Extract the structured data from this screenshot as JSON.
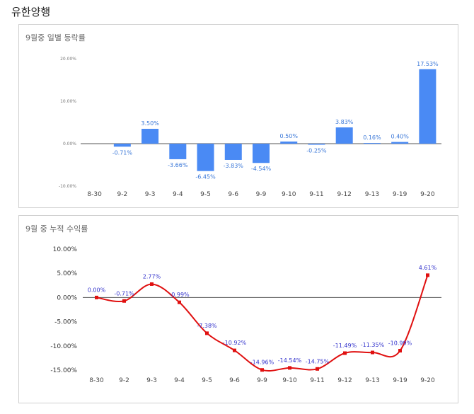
{
  "page": {
    "title": "유한양행"
  },
  "chart_data": [
    {
      "type": "bar",
      "title": "9월중 일별 등락률",
      "categories": [
        "8-30",
        "9-2",
        "9-3",
        "9-4",
        "9-5",
        "9-6",
        "9-9",
        "9-10",
        "9-11",
        "9-12",
        "9-13",
        "9-19",
        "9-20"
      ],
      "values": [
        null,
        -0.71,
        3.5,
        -3.66,
        -6.45,
        -3.83,
        -4.54,
        0.5,
        -0.25,
        3.83,
        0.16,
        0.4,
        17.53
      ],
      "data_labels": [
        "",
        "-0.71%",
        "3.50%",
        "-3.66%",
        "-6.45%",
        "-3.83%",
        "-4.54%",
        "0.50%",
        "-0.25%",
        "3.83%",
        "0.16%",
        "0.40%",
        "17.53%"
      ],
      "yticks": [
        20,
        10,
        0,
        -10
      ],
      "ytick_labels": [
        "20.00%",
        "10.00%",
        "0.00%",
        "-10.00%"
      ],
      "ylim": [
        -10,
        20
      ],
      "color": "#4a8af4",
      "grid": false
    },
    {
      "type": "line",
      "title": "9월 중 누적 수익률",
      "categories": [
        "8-30",
        "9-2",
        "9-3",
        "9-4",
        "9-5",
        "9-6",
        "9-9",
        "9-10",
        "9-11",
        "9-12",
        "9-13",
        "9-19",
        "9-20"
      ],
      "values": [
        0.0,
        -0.71,
        2.77,
        -0.99,
        -7.38,
        -10.92,
        -14.96,
        -14.54,
        -14.75,
        -11.49,
        -11.35,
        -10.99,
        4.61
      ],
      "data_labels": [
        "0.00%",
        "-0.71%",
        "2.77%",
        "-0.99%",
        "-7.38%",
        "-10.92%",
        "-14.96%",
        "-14.54%",
        "-14.75%",
        "-11.49%",
        "-11.35%",
        "-10.99%",
        "4.61%"
      ],
      "yticks": [
        10,
        5,
        0,
        -5,
        -10,
        -15
      ],
      "ytick_labels": [
        "10.00%",
        "5.00%",
        "0.00%",
        "-5.00%",
        "-10.00%",
        "-15.00%"
      ],
      "ylim": [
        -15,
        10
      ],
      "color": "#e01010",
      "label_color": "#3333cc",
      "grid": false
    }
  ]
}
